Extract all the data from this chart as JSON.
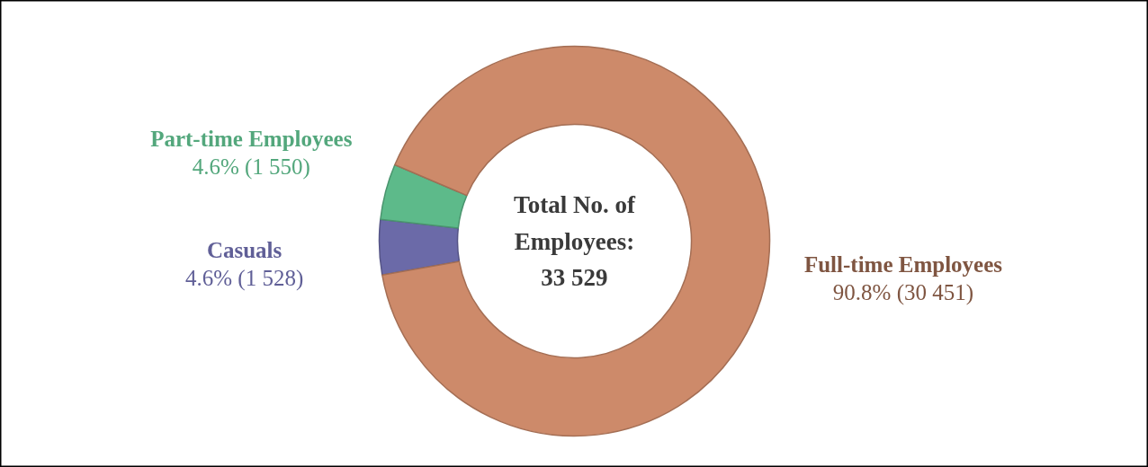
{
  "chart_data": {
    "type": "donut",
    "categories": [
      "Casuals",
      "Part-time Employees",
      "Full-time Employees"
    ],
    "values": [
      1528,
      1550,
      30451
    ],
    "colors": [
      "#6b6aa8",
      "#5dba8a",
      "#cd8a6a"
    ],
    "value_labels": [
      "4.6% (1 528)",
      "4.6% (1 550)",
      "90.8% (30 451)"
    ],
    "annotations": [
      "Total No. of Employees: 33 529"
    ]
  }
}
